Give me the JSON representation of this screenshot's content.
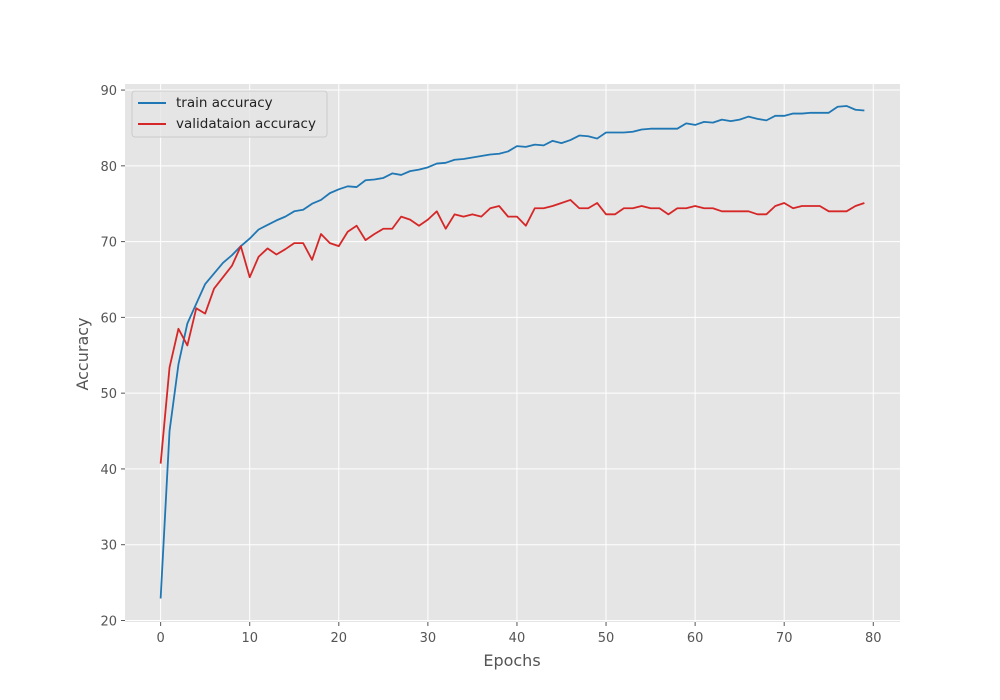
{
  "chart_data": {
    "type": "line",
    "title": "",
    "xlabel": "Epochs",
    "ylabel": "Accuracy",
    "xlim": [
      -4,
      83
    ],
    "ylim": [
      19.8,
      90.8
    ],
    "xticks": [
      0,
      10,
      20,
      30,
      40,
      50,
      60,
      70,
      80
    ],
    "yticks": [
      20,
      30,
      40,
      50,
      60,
      70,
      80,
      90
    ],
    "grid": true,
    "legend_position": "top-left",
    "background_color": "#e5e5e5",
    "grid_color": "#ffffff",
    "series": [
      {
        "name": "train accuracy",
        "color": "#1f77b4",
        "x": [
          0,
          1,
          2,
          3,
          4,
          5,
          6,
          7,
          8,
          9,
          10,
          11,
          12,
          13,
          14,
          15,
          16,
          17,
          18,
          19,
          20,
          21,
          22,
          23,
          24,
          25,
          26,
          27,
          28,
          29,
          30,
          31,
          32,
          33,
          34,
          35,
          36,
          37,
          38,
          39,
          40,
          41,
          42,
          43,
          44,
          45,
          46,
          47,
          48,
          49,
          50,
          51,
          52,
          53,
          54,
          55,
          56,
          57,
          58,
          59,
          60,
          61,
          62,
          63,
          64,
          65,
          66,
          67,
          68,
          69,
          70,
          71,
          72,
          73,
          74,
          75,
          76,
          77,
          78,
          79
        ],
        "values": [
          22.9,
          45.0,
          53.8,
          59.2,
          61.8,
          64.4,
          65.8,
          67.2,
          68.2,
          69.4,
          70.4,
          71.6,
          72.2,
          72.8,
          73.3,
          74.0,
          74.2,
          75.0,
          75.5,
          76.4,
          76.9,
          77.3,
          77.2,
          78.1,
          78.2,
          78.4,
          79.0,
          78.8,
          79.3,
          79.5,
          79.8,
          80.3,
          80.4,
          80.8,
          80.9,
          81.1,
          81.3,
          81.5,
          81.6,
          81.9,
          82.6,
          82.5,
          82.8,
          82.7,
          83.3,
          83.0,
          83.4,
          84.0,
          83.9,
          83.6,
          84.4,
          84.4,
          84.4,
          84.5,
          84.8,
          84.9,
          84.9,
          84.9,
          84.9,
          85.6,
          85.4,
          85.8,
          85.7,
          86.1,
          85.9,
          86.1,
          86.5,
          86.2,
          86.0,
          86.6,
          86.6,
          86.9,
          86.9,
          87.0,
          87.0,
          87.0,
          87.8,
          87.9,
          87.4,
          87.3
        ]
      },
      {
        "name": "validataion accuracy",
        "color": "#d62728",
        "x": [
          0,
          1,
          2,
          3,
          4,
          5,
          6,
          7,
          8,
          9,
          10,
          11,
          12,
          13,
          14,
          15,
          16,
          17,
          18,
          19,
          20,
          21,
          22,
          23,
          24,
          25,
          26,
          27,
          28,
          29,
          30,
          31,
          32,
          33,
          34,
          35,
          36,
          37,
          38,
          39,
          40,
          41,
          42,
          43,
          44,
          45,
          46,
          47,
          48,
          49,
          50,
          51,
          52,
          53,
          54,
          55,
          56,
          57,
          58,
          59,
          60,
          61,
          62,
          63,
          64,
          65,
          66,
          67,
          68,
          69,
          70,
          71,
          72,
          73,
          74,
          75,
          76,
          77,
          78,
          79
        ],
        "values": [
          40.7,
          53.4,
          58.5,
          56.3,
          61.2,
          60.5,
          63.8,
          65.3,
          66.8,
          69.4,
          65.3,
          68.0,
          69.1,
          68.3,
          69.0,
          69.8,
          69.8,
          67.6,
          71.0,
          69.8,
          69.4,
          71.3,
          72.1,
          70.2,
          71.0,
          71.7,
          71.7,
          73.3,
          72.9,
          72.1,
          72.9,
          74.0,
          71.7,
          73.6,
          73.3,
          73.6,
          73.3,
          74.4,
          74.7,
          73.3,
          73.3,
          72.1,
          74.4,
          74.4,
          74.7,
          75.1,
          75.5,
          74.4,
          74.4,
          75.1,
          73.6,
          73.6,
          74.4,
          74.4,
          74.7,
          74.4,
          74.4,
          73.6,
          74.4,
          74.4,
          74.7,
          74.4,
          74.4,
          74.0,
          74.0,
          74.0,
          74.0,
          73.6,
          73.6,
          74.7,
          75.1,
          74.4,
          74.7,
          74.7,
          74.7,
          74.0,
          74.0,
          74.0,
          74.7,
          75.1
        ]
      }
    ]
  }
}
